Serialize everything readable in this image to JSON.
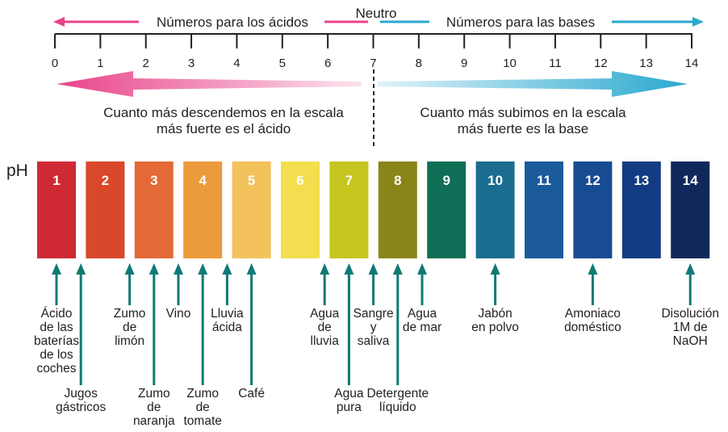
{
  "header": {
    "acids_label": "Números para los ácidos",
    "neutral_label": "Neutro",
    "bases_label": "Números para las bases"
  },
  "scale": {
    "ticks": [
      "0",
      "1",
      "2",
      "3",
      "4",
      "5",
      "6",
      "7",
      "8",
      "9",
      "10",
      "11",
      "12",
      "13",
      "14"
    ]
  },
  "descriptions": {
    "acid": [
      "Cuanto más descendemos en la escala",
      "más fuerte es el ácido"
    ],
    "base": [
      "Cuanto más subimos en la escala",
      "más fuerte es la base"
    ]
  },
  "ph_label": "pH",
  "colors": {
    "acid_arrow": "#e8448a",
    "base_arrow": "#2aa9cf",
    "pointer": "#0f7a73"
  },
  "boxes": [
    {
      "label": "1",
      "color": "#cf2a33"
    },
    {
      "label": "2",
      "color": "#d9482b"
    },
    {
      "label": "3",
      "color": "#e36a36"
    },
    {
      "label": "4",
      "color": "#eb9b3b"
    },
    {
      "label": "5",
      "color": "#f3c25c"
    },
    {
      "label": "6",
      "color": "#f2de4e"
    },
    {
      "label": "7",
      "color": "#c7c51f"
    },
    {
      "label": "8",
      "color": "#8a8519"
    },
    {
      "label": "9",
      "color": "#0f6f56"
    },
    {
      "label": "10",
      "color": "#1b6d8f"
    },
    {
      "label": "11",
      "color": "#1b5a9b"
    },
    {
      "label": "12",
      "color": "#174c92"
    },
    {
      "label": "13",
      "color": "#133c82"
    },
    {
      "label": "14",
      "color": "#11295a"
    }
  ],
  "examples": [
    {
      "ph": 1.0,
      "level": "upper",
      "lines": [
        "Ácido",
        "de las",
        "baterías",
        "de los",
        "coches"
      ]
    },
    {
      "ph": 1.5,
      "level": "lower",
      "lines": [
        "Jugos",
        "gástricos"
      ]
    },
    {
      "ph": 2.5,
      "level": "upper",
      "lines": [
        "Zumo",
        "de",
        "limón"
      ]
    },
    {
      "ph": 3.0,
      "level": "lower",
      "lines": [
        "Zumo",
        "de",
        "naranja"
      ]
    },
    {
      "ph": 3.5,
      "level": "upper",
      "lines": [
        "Vino"
      ]
    },
    {
      "ph": 4.0,
      "level": "lower",
      "lines": [
        "Zumo",
        "de",
        "tomate"
      ]
    },
    {
      "ph": 4.5,
      "level": "upper",
      "lines": [
        "Lluvia",
        "ácida"
      ]
    },
    {
      "ph": 5.0,
      "level": "lower",
      "lines": [
        "Café"
      ]
    },
    {
      "ph": 6.5,
      "level": "upper",
      "lines": [
        "Agua",
        "de",
        "lluvia"
      ]
    },
    {
      "ph": 7.0,
      "level": "lower",
      "lines": [
        "Agua",
        "pura"
      ]
    },
    {
      "ph": 7.5,
      "level": "upper",
      "lines": [
        "Sangre",
        "y",
        "saliva"
      ]
    },
    {
      "ph": 8.0,
      "level": "lower",
      "lines": [
        "Detergente",
        "líquido"
      ]
    },
    {
      "ph": 8.5,
      "level": "upper",
      "lines": [
        "Agua",
        "de mar"
      ]
    },
    {
      "ph": 10.0,
      "level": "upper",
      "lines": [
        "Jabón",
        "en polvo"
      ]
    },
    {
      "ph": 12.0,
      "level": "upper",
      "lines": [
        "Amoniaco",
        "doméstico"
      ]
    },
    {
      "ph": 14.0,
      "level": "upper",
      "lines": [
        "Disolución",
        "1M de",
        "NaOH"
      ]
    }
  ]
}
